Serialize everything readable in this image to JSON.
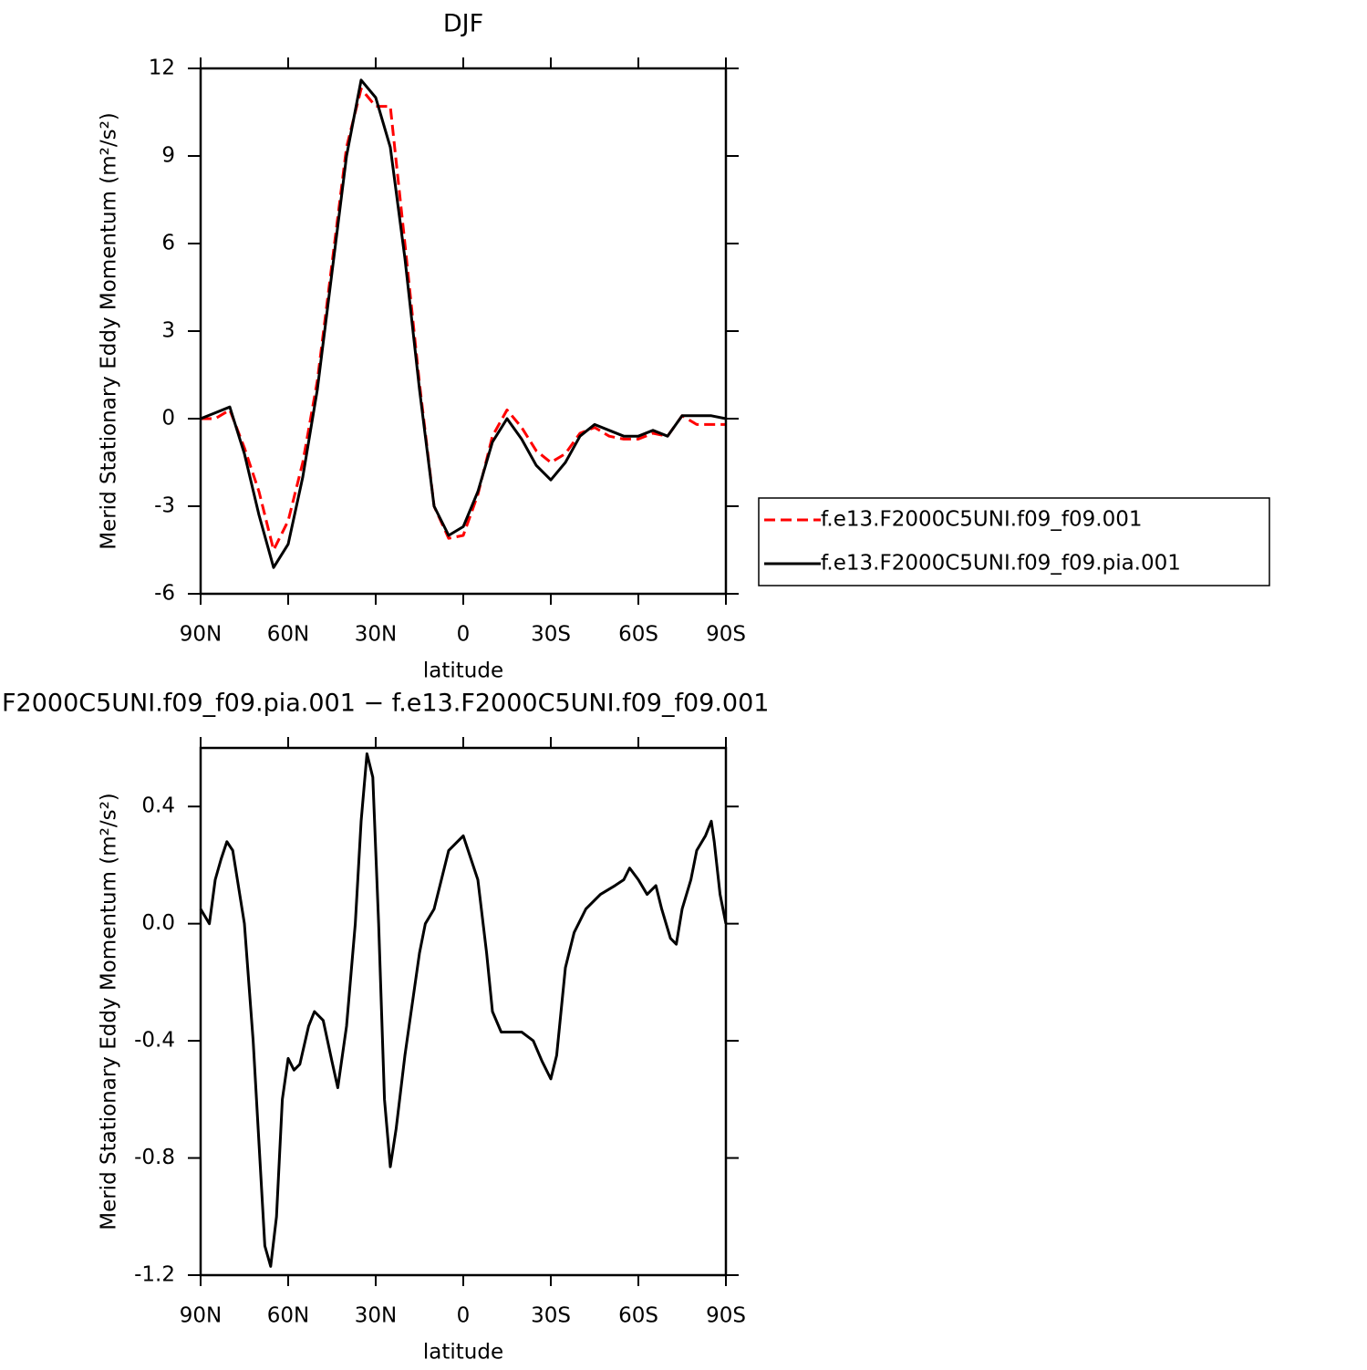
{
  "chart_data": [
    {
      "type": "line",
      "title": "DJF",
      "xlabel": "latitude",
      "ylabel": "Merid Stationary Eddy Momentum (m²/s²)",
      "x": [
        90,
        85,
        80,
        75,
        70,
        65,
        60,
        55,
        50,
        45,
        40,
        35,
        30,
        25,
        20,
        15,
        10,
        5,
        0,
        -5,
        -10,
        -15,
        -20,
        -25,
        -30,
        -35,
        -40,
        -45,
        -50,
        -55,
        -60,
        -65,
        -70,
        -75,
        -80,
        -85,
        -90
      ],
      "series": [
        {
          "name": "f.e13.F2000C5UNI.f09_f09.001",
          "color": "#ff0000",
          "line_style": "dashed",
          "values": [
            0,
            0,
            0.3,
            -1.0,
            -2.5,
            -4.5,
            -3.5,
            -1.5,
            1.3,
            5.3,
            9.3,
            11.3,
            10.7,
            10.7,
            6.0,
            1.2,
            -3.0,
            -4.1,
            -4.0,
            -2.6,
            -0.6,
            0.3,
            -0.3,
            -1.1,
            -1.5,
            -1.2,
            -0.5,
            -0.3,
            -0.6,
            -0.7,
            -0.7,
            -0.5,
            -0.6,
            0.1,
            -0.2,
            -0.2,
            -0.2
          ]
        },
        {
          "name": "f.e13.F2000C5UNI.f09_f09.pia.001",
          "color": "#000000",
          "line_style": "solid",
          "values": [
            0,
            0.2,
            0.4,
            -1.2,
            -3.3,
            -5.1,
            -4.3,
            -2.0,
            1.0,
            5.0,
            9.0,
            11.6,
            11.0,
            9.3,
            5.5,
            1.0,
            -3.0,
            -4.0,
            -3.7,
            -2.5,
            -0.8,
            0.0,
            -0.7,
            -1.6,
            -2.1,
            -1.5,
            -0.6,
            -0.2,
            -0.4,
            -0.6,
            -0.6,
            -0.4,
            -0.6,
            0.1,
            0.1,
            0.1,
            0.0
          ]
        }
      ],
      "xlim": [
        90,
        -90
      ],
      "xticks": [
        {
          "value": 90,
          "label": "90N"
        },
        {
          "value": 60,
          "label": "60N"
        },
        {
          "value": 30,
          "label": "30N"
        },
        0,
        {
          "value": -30,
          "label": "30S"
        },
        {
          "value": -60,
          "label": "60S"
        },
        {
          "value": -90,
          "label": "90S"
        }
      ],
      "ylim": [
        -6,
        12
      ],
      "yticks": [
        -6,
        -3,
        0,
        3,
        6,
        9,
        12
      ],
      "legend": "outside right"
    },
    {
      "type": "line",
      "title": "F2000C5UNI.f09_f09.pia.001 − f.e13.F2000C5UNI.f09_f09.001",
      "xlabel": "latitude",
      "ylabel": "Merid Stationary Eddy Momentum (m²/s²)",
      "x": [
        90,
        87,
        85,
        83,
        81,
        79,
        75,
        72,
        70,
        68,
        66,
        64,
        62,
        60,
        58,
        56,
        53,
        51,
        48,
        45,
        43,
        40,
        37,
        35,
        33,
        31,
        29,
        27,
        25,
        23,
        20,
        15,
        13,
        10,
        5,
        0,
        -5,
        -8,
        -10,
        -13,
        -15,
        -20,
        -24,
        -27,
        -30,
        -32,
        -35,
        -38,
        -42,
        -47,
        -52,
        -55,
        -57,
        -60,
        -63,
        -66,
        -68,
        -71,
        -73,
        -75,
        -78,
        -80,
        -83,
        -85,
        -86,
        -88,
        -90
      ],
      "series": [
        {
          "color": "#000000",
          "line_style": "solid",
          "values": [
            0.05,
            0.0,
            0.15,
            0.22,
            0.28,
            0.25,
            0.0,
            -0.4,
            -0.75,
            -1.1,
            -1.17,
            -1.0,
            -0.6,
            -0.46,
            -0.5,
            -0.48,
            -0.35,
            -0.3,
            -0.33,
            -0.47,
            -0.56,
            -0.35,
            0.0,
            0.35,
            0.58,
            0.5,
            0.0,
            -0.6,
            -0.83,
            -0.7,
            -0.45,
            -0.1,
            0.0,
            0.05,
            0.25,
            0.3,
            0.15,
            -0.1,
            -0.3,
            -0.37,
            -0.37,
            -0.37,
            -0.4,
            -0.47,
            -0.53,
            -0.45,
            -0.15,
            -0.03,
            0.05,
            0.1,
            0.13,
            0.15,
            0.19,
            0.15,
            0.1,
            0.13,
            0.05,
            -0.05,
            -0.07,
            0.05,
            0.15,
            0.25,
            0.3,
            0.35,
            0.28,
            0.1,
            0.0
          ]
        }
      ],
      "xlim": [
        90,
        -90
      ],
      "xticks": [
        {
          "value": 90,
          "label": "90N"
        },
        {
          "value": 60,
          "label": "60N"
        },
        {
          "value": 30,
          "label": "30N"
        },
        0,
        {
          "value": -30,
          "label": "30S"
        },
        {
          "value": -60,
          "label": "60S"
        },
        {
          "value": -90,
          "label": "90S"
        }
      ],
      "ylim": [
        -1.2,
        0.6
      ],
      "yticks": [
        -1.2,
        -0.8,
        -0.4,
        {
          "value": 0,
          "label": "0.0"
        },
        0.4
      ]
    }
  ]
}
